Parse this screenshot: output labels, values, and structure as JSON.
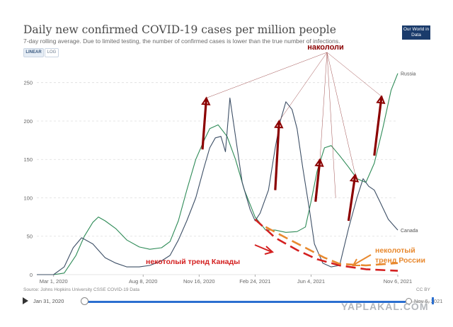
{
  "title": "Daily new confirmed COVID-19 cases per million people",
  "subtitle": "7-day rolling average. Due to limited testing, the number of confirmed cases is lower than the true number of infections.",
  "controls": {
    "linear_label": "LINEAR",
    "log_label": "LOG"
  },
  "logo_text": "Our World in Data",
  "source": "Source: Johns Hopkins University CSSE COVID-19 Data",
  "license": "CC BY",
  "timeline": {
    "start_label": "Jan 31, 2020",
    "end_label": "Nov 6, 2021"
  },
  "watermark": "YAPLAKAL.COM",
  "colors": {
    "russia": "#2e8b57",
    "canada": "#3d4f66",
    "annotation": "#8b0000",
    "russia_trend": "#e8892f",
    "canada_trend": "#d42020",
    "grid": "#dddddd"
  },
  "annotations": {
    "nakololi": "накололи",
    "canada_trend": "некотолый тренд Канады",
    "russia_trend_line1": "неколотый",
    "russia_trend_line2": "тренд России"
  },
  "chart_data": {
    "type": "line",
    "title": "Daily new confirmed COVID-19 cases per million people",
    "x_ticks": [
      "Mar 1, 2020",
      "Aug 8, 2020",
      "Nov 16, 2020",
      "Feb 24, 2021",
      "Jun 4, 2021",
      "Nov 6, 2021"
    ],
    "ylim": [
      0,
      270
    ],
    "y_ticks": [
      0,
      50,
      100,
      150,
      200,
      250
    ],
    "grid": "horizontal dashed",
    "series": [
      {
        "name": "Russia",
        "color": "#2e8b57",
        "x": [
          "2020-01-31",
          "2020-03-01",
          "2020-03-20",
          "2020-04-10",
          "2020-04-25",
          "2020-05-10",
          "2020-05-20",
          "2020-06-01",
          "2020-06-20",
          "2020-07-10",
          "2020-08-01",
          "2020-08-20",
          "2020-09-10",
          "2020-09-25",
          "2020-10-10",
          "2020-10-25",
          "2020-11-10",
          "2020-11-25",
          "2020-12-05",
          "2020-12-20",
          "2021-01-05",
          "2021-01-20",
          "2021-02-05",
          "2021-02-24",
          "2021-03-15",
          "2021-04-01",
          "2021-04-20",
          "2021-05-10",
          "2021-05-25",
          "2021-06-04",
          "2021-06-15",
          "2021-06-28",
          "2021-07-10",
          "2021-07-25",
          "2021-08-10",
          "2021-08-25",
          "2021-09-10",
          "2021-09-25",
          "2021-10-10",
          "2021-10-25",
          "2021-11-06"
        ],
        "values": [
          0,
          0,
          2,
          25,
          50,
          68,
          75,
          70,
          60,
          45,
          36,
          33,
          35,
          43,
          70,
          110,
          150,
          175,
          190,
          195,
          180,
          150,
          110,
          75,
          58,
          58,
          55,
          56,
          62,
          95,
          135,
          165,
          168,
          155,
          140,
          125,
          120,
          145,
          190,
          240,
          262
        ]
      },
      {
        "name": "Canada",
        "color": "#3d4f66",
        "x": [
          "2020-01-31",
          "2020-03-01",
          "2020-03-20",
          "2020-04-05",
          "2020-04-20",
          "2020-05-10",
          "2020-06-01",
          "2020-06-20",
          "2020-07-10",
          "2020-08-01",
          "2020-08-20",
          "2020-09-10",
          "2020-09-25",
          "2020-10-10",
          "2020-10-25",
          "2020-11-10",
          "2020-11-25",
          "2020-12-05",
          "2020-12-15",
          "2020-12-25",
          "2021-01-02",
          "2021-01-10",
          "2021-01-20",
          "2021-02-01",
          "2021-02-15",
          "2021-02-24",
          "2021-03-05",
          "2021-03-20",
          "2021-04-01",
          "2021-04-10",
          "2021-04-20",
          "2021-05-01",
          "2021-05-10",
          "2021-05-20",
          "2021-06-01",
          "2021-06-10",
          "2021-06-25",
          "2021-07-10",
          "2021-07-25",
          "2021-08-10",
          "2021-08-25",
          "2021-09-05",
          "2021-09-15",
          "2021-09-25",
          "2021-10-05",
          "2021-10-20",
          "2021-11-06"
        ],
        "values": [
          0,
          0,
          10,
          35,
          48,
          40,
          22,
          15,
          10,
          10,
          12,
          18,
          25,
          45,
          70,
          100,
          140,
          165,
          178,
          180,
          160,
          230,
          180,
          120,
          85,
          70,
          80,
          110,
          165,
          200,
          225,
          215,
          190,
          140,
          85,
          40,
          15,
          10,
          12,
          60,
          100,
          125,
          115,
          110,
          95,
          72,
          58
        ]
      },
      {
        "name": "некотолый тренд Канады",
        "color": "#d42020",
        "style": "dashed",
        "x": [
          "2021-02-24",
          "2021-04-01",
          "2021-05-10",
          "2021-06-15",
          "2021-07-25",
          "2021-09-10",
          "2021-11-06"
        ],
        "values": [
          72,
          48,
          32,
          20,
          12,
          7,
          5
        ]
      },
      {
        "name": "неколотый тренд России",
        "color": "#e8892f",
        "style": "dashed",
        "x": [
          "2021-03-15",
          "2021-04-20",
          "2021-05-25",
          "2021-06-28",
          "2021-07-25",
          "2021-09-10",
          "2021-11-06"
        ],
        "values": [
          62,
          48,
          35,
          22,
          14,
          12,
          15
        ]
      }
    ]
  }
}
